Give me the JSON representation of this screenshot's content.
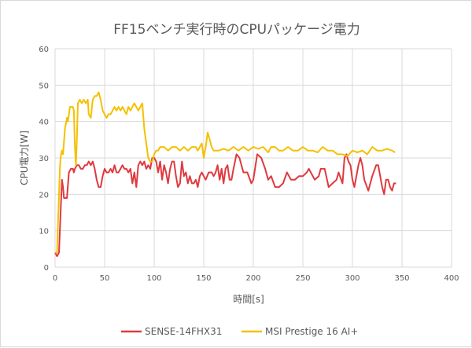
{
  "chart_data": {
    "type": "line",
    "title": "FF15ベンチ実行時のCPUパッケージ電力",
    "xlabel": "時間[s]",
    "ylabel": "CPU電力[W]",
    "xlim": [
      0,
      400
    ],
    "ylim": [
      0,
      60
    ],
    "xticks": [
      0,
      50,
      100,
      150,
      200,
      250,
      300,
      350,
      400
    ],
    "yticks": [
      0,
      10,
      20,
      30,
      40,
      50,
      60
    ],
    "grid": true,
    "legend": "bottom",
    "series": [
      {
        "name": "SENSE-14FHX31",
        "color": "#e0393e",
        "x": [
          0,
          2,
          4,
          6,
          7,
          8,
          9,
          12,
          14,
          16,
          18,
          19,
          20,
          22,
          24,
          26,
          28,
          30,
          32,
          34,
          36,
          38,
          40,
          42,
          44,
          46,
          48,
          50,
          52,
          54,
          56,
          58,
          60,
          62,
          64,
          66,
          68,
          70,
          72,
          74,
          76,
          78,
          80,
          82,
          84,
          86,
          88,
          90,
          92,
          94,
          96,
          98,
          100,
          102,
          104,
          106,
          108,
          110,
          112,
          114,
          116,
          118,
          120,
          122,
          124,
          126,
          128,
          130,
          132,
          134,
          136,
          138,
          140,
          142,
          144,
          146,
          148,
          150,
          152,
          155,
          158,
          160,
          162,
          164,
          166,
          168,
          170,
          172,
          174,
          176,
          178,
          180,
          183,
          186,
          190,
          194,
          198,
          200,
          204,
          208,
          212,
          215,
          218,
          222,
          226,
          230,
          234,
          238,
          242,
          246,
          250,
          254,
          256,
          258,
          262,
          266,
          268,
          272,
          276,
          280,
          284,
          286,
          290,
          292,
          294,
          296,
          298,
          300,
          302,
          306,
          308,
          310,
          312,
          316,
          320,
          324,
          326,
          330,
          332,
          334,
          336,
          338,
          340,
          342,
          344
        ],
        "y": [
          4,
          3,
          4,
          18,
          24,
          22,
          19,
          19,
          26,
          27,
          27,
          26,
          27,
          28,
          28,
          27,
          27,
          28,
          28,
          29,
          28,
          29,
          27,
          24,
          22,
          22,
          25,
          27,
          26,
          26,
          27,
          26,
          28,
          26,
          26,
          27,
          28,
          27,
          27,
          26,
          27,
          23,
          26,
          22,
          28,
          29,
          28,
          29,
          27,
          28,
          27,
          30,
          30,
          29,
          26,
          29,
          24,
          28,
          26,
          23,
          27,
          29,
          29,
          25,
          22,
          23,
          29,
          25,
          26,
          23,
          25,
          23,
          23,
          24,
          22,
          25,
          26,
          25,
          24,
          26,
          26,
          25,
          26,
          28,
          24,
          27,
          23,
          27,
          28,
          24,
          24,
          27,
          31,
          30,
          26,
          26,
          23,
          24,
          31,
          30,
          27,
          24,
          25,
          22,
          22,
          23,
          26,
          24,
          24,
          25,
          25,
          26,
          27,
          26,
          24,
          25,
          27,
          27,
          22,
          23,
          24,
          26,
          23,
          30,
          31,
          29,
          28,
          24,
          22,
          28,
          30,
          28,
          24,
          21,
          25,
          28,
          28,
          22,
          20,
          24,
          24,
          22,
          21,
          23,
          23
        ]
      },
      {
        "name": "MSI Prestige 16 AI+",
        "color": "#f5c000",
        "x": [
          0,
          2,
          4,
          5,
          6,
          7,
          8,
          10,
          12,
          13,
          15,
          17,
          18,
          19,
          20,
          21,
          22,
          23,
          25,
          27,
          29,
          31,
          33,
          34,
          36,
          38,
          40,
          42,
          44,
          46,
          48,
          50,
          52,
          54,
          56,
          58,
          60,
          62,
          64,
          66,
          68,
          70,
          72,
          74,
          76,
          78,
          80,
          82,
          84,
          86,
          88,
          90,
          92,
          94,
          96,
          98,
          100,
          102,
          104,
          106,
          110,
          114,
          118,
          122,
          126,
          130,
          134,
          138,
          142,
          144,
          146,
          148,
          150,
          152,
          154,
          156,
          158,
          160,
          165,
          170,
          175,
          180,
          185,
          190,
          195,
          200,
          205,
          210,
          215,
          218,
          222,
          226,
          230,
          235,
          240,
          245,
          250,
          255,
          260,
          265,
          270,
          275,
          280,
          285,
          290,
          295,
          300,
          305,
          310,
          315,
          320,
          325,
          330,
          335,
          340,
          343
        ],
        "y": [
          4,
          4,
          20,
          28,
          31,
          32,
          31,
          38,
          41,
          40,
          44,
          44,
          44,
          43,
          33,
          28,
          35,
          45,
          46,
          45,
          46,
          45,
          46,
          42,
          41,
          46,
          47,
          47,
          48,
          46,
          43,
          42,
          41,
          42,
          42,
          43,
          44,
          43,
          44,
          43,
          44,
          43,
          42,
          44,
          43,
          44,
          45,
          44,
          43,
          44,
          45,
          38,
          34,
          30,
          29,
          29,
          31,
          32,
          32,
          33,
          33,
          32,
          33,
          33,
          32,
          33,
          32,
          33,
          33,
          32,
          33,
          34,
          30,
          33,
          37,
          35,
          33,
          32,
          32,
          32.5,
          32,
          33,
          32,
          33,
          32,
          33,
          32.5,
          33,
          31.5,
          33,
          33,
          32,
          32,
          33,
          32,
          32,
          33,
          32,
          32,
          31.5,
          33,
          32,
          32,
          31,
          31,
          30.5,
          32,
          31.5,
          32,
          31,
          33,
          32,
          32,
          32.5,
          32,
          31.5
        ]
      }
    ]
  }
}
